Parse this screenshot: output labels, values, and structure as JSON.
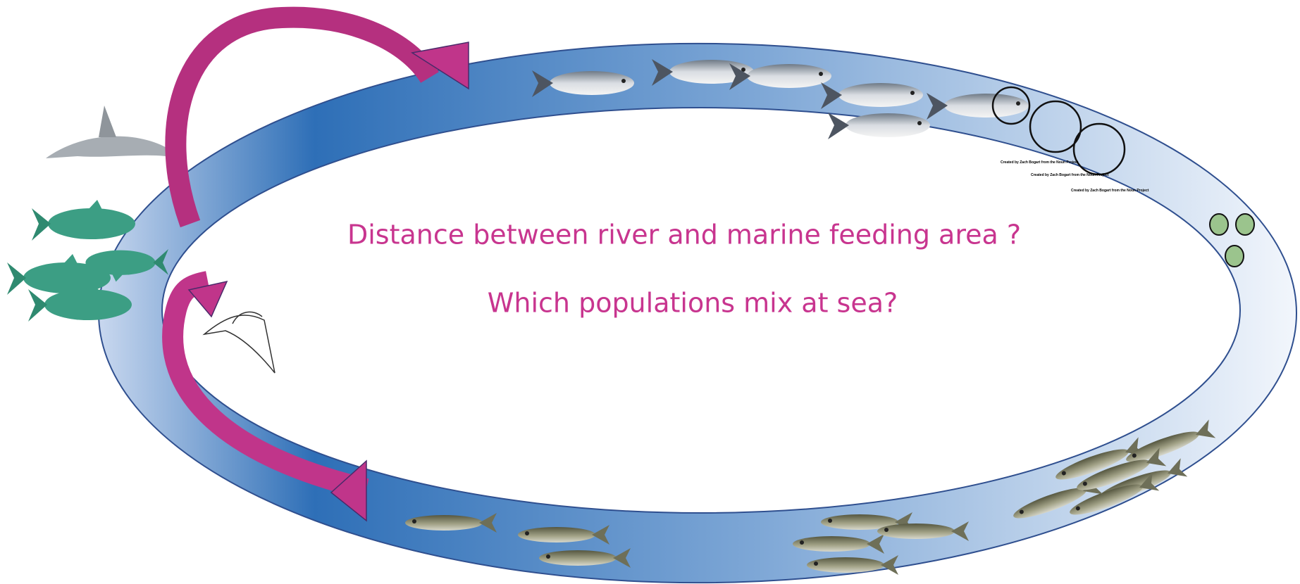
{
  "questions": [
    "Distance between river and marine  feeding area ?",
    "Which populations mix at sea?"
  ],
  "credits": [
    "Created by Zach Bogart from the Noun Project",
    "Created by Zach Bogart from the Noun Project",
    "Created by Zach Bogart from the Noun Project"
  ]
}
